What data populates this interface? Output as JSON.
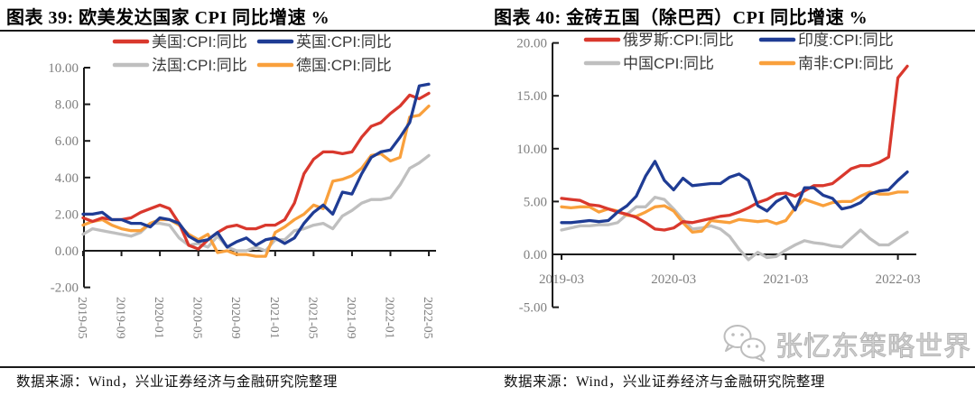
{
  "watermark": {
    "text": "张忆东策略世界",
    "icon": "wechat-chat-bubbles"
  },
  "chart_data": [
    {
      "id": "fig39",
      "type": "line",
      "title": "图表 39: 欧美发达国家 CPI 同比增速 %",
      "source": "数据来源：Wind，兴业证券经济与金融研究院整理",
      "unit": "%",
      "ylim": [
        -2,
        10
      ],
      "yticks": [
        10,
        8,
        6,
        4,
        2,
        0,
        -2
      ],
      "ytick_labels": [
        "10.00",
        "8.00",
        "6.00",
        "4.00",
        "2.00",
        "0.00",
        "-2.00"
      ],
      "x_tick_labels": [
        "2019-05",
        "2019-09",
        "2020-01",
        "2020-05",
        "2020-09",
        "2021-01",
        "2021-05",
        "2021-09",
        "2022-01",
        "2022-05"
      ],
      "x_label_rotation": 90,
      "grid": false,
      "legend_position": "top-two-rows",
      "months": [
        "2019-05",
        "2019-06",
        "2019-07",
        "2019-08",
        "2019-09",
        "2019-10",
        "2019-11",
        "2019-12",
        "2020-01",
        "2020-02",
        "2020-03",
        "2020-04",
        "2020-05",
        "2020-06",
        "2020-07",
        "2020-08",
        "2020-09",
        "2020-10",
        "2020-11",
        "2020-12",
        "2021-01",
        "2021-02",
        "2021-03",
        "2021-04",
        "2021-05",
        "2021-06",
        "2021-07",
        "2021-08",
        "2021-09",
        "2021-10",
        "2021-11",
        "2021-12",
        "2022-01",
        "2022-02",
        "2022-03",
        "2022-04",
        "2022-05"
      ],
      "draw_order": [
        2,
        3,
        0,
        1
      ],
      "series": [
        {
          "name": "美国:CPI:同比",
          "color": "#d9382d",
          "values": [
            1.8,
            1.6,
            1.8,
            1.7,
            1.7,
            1.8,
            2.1,
            2.3,
            2.5,
            2.3,
            1.5,
            0.3,
            0.1,
            0.6,
            1.0,
            1.3,
            1.4,
            1.2,
            1.2,
            1.4,
            1.4,
            1.7,
            2.6,
            4.2,
            5.0,
            5.4,
            5.4,
            5.3,
            5.4,
            6.2,
            6.8,
            7.0,
            7.5,
            7.9,
            8.5,
            8.3,
            8.6
          ]
        },
        {
          "name": "英国:CPI:同比",
          "color": "#1f3c94",
          "values": [
            2.0,
            2.0,
            2.1,
            1.7,
            1.7,
            1.5,
            1.5,
            1.3,
            1.8,
            1.7,
            1.5,
            0.8,
            0.5,
            0.6,
            1.0,
            0.2,
            0.5,
            0.7,
            0.3,
            0.6,
            0.7,
            0.4,
            0.7,
            1.5,
            2.1,
            2.5,
            2.0,
            3.2,
            3.1,
            4.2,
            5.1,
            5.4,
            5.5,
            6.2,
            7.0,
            9.0,
            9.1
          ]
        },
        {
          "name": "法国:CPI:同比",
          "color": "#bfbfbf",
          "values": [
            0.9,
            1.2,
            1.1,
            1.0,
            0.9,
            0.8,
            1.0,
            1.5,
            1.5,
            1.4,
            0.7,
            0.3,
            0.4,
            0.2,
            0.8,
            0.2,
            0.0,
            0.0,
            0.2,
            0.0,
            0.6,
            0.6,
            1.1,
            1.2,
            1.4,
            1.5,
            1.2,
            1.9,
            2.2,
            2.6,
            2.8,
            2.8,
            2.9,
            3.6,
            4.5,
            4.8,
            5.2
          ]
        },
        {
          "name": "德国:CPI:同比",
          "color": "#f9a03c",
          "values": [
            1.4,
            1.6,
            1.7,
            1.4,
            1.2,
            1.1,
            1.1,
            1.5,
            1.7,
            1.7,
            1.4,
            0.9,
            0.6,
            0.9,
            -0.1,
            0.0,
            -0.2,
            -0.2,
            -0.3,
            -0.3,
            1.0,
            1.3,
            1.7,
            2.0,
            2.5,
            2.3,
            3.8,
            3.9,
            4.1,
            4.5,
            5.2,
            5.3,
            4.9,
            5.1,
            7.3,
            7.4,
            7.9
          ]
        }
      ]
    },
    {
      "id": "fig40",
      "type": "line",
      "title": "图表 40: 金砖五国（除巴西）CPI 同比增速 %",
      "source": "数据来源：Wind，兴业证券经济与金融研究院整理",
      "unit": "%",
      "ylim": [
        -5,
        20
      ],
      "yticks": [
        20,
        15,
        10,
        5,
        0,
        -5
      ],
      "ytick_labels": [
        "20.00",
        "15.00",
        "10.00",
        "5.00",
        "0.00",
        "-5.00"
      ],
      "x_tick_labels": [
        "2019-03",
        "2020-03",
        "2021-03",
        "2022-03"
      ],
      "x_label_rotation": 0,
      "grid": false,
      "legend_position": "top-two-rows",
      "months": [
        "2019-03",
        "2019-04",
        "2019-05",
        "2019-06",
        "2019-07",
        "2019-08",
        "2019-09",
        "2019-10",
        "2019-11",
        "2019-12",
        "2020-01",
        "2020-02",
        "2020-03",
        "2020-04",
        "2020-05",
        "2020-06",
        "2020-07",
        "2020-08",
        "2020-09",
        "2020-10",
        "2020-11",
        "2020-12",
        "2021-01",
        "2021-02",
        "2021-03",
        "2021-04",
        "2021-05",
        "2021-06",
        "2021-07",
        "2021-08",
        "2021-09",
        "2021-10",
        "2021-11",
        "2021-12",
        "2022-01",
        "2022-02",
        "2022-03",
        "2022-04"
      ],
      "draw_order": [
        2,
        3,
        0,
        1
      ],
      "series": [
        {
          "name": "俄罗斯:CPI:同比",
          "color": "#d9382d",
          "values": [
            5.3,
            5.2,
            5.1,
            4.7,
            4.6,
            4.3,
            4.0,
            3.8,
            3.5,
            3.0,
            2.4,
            2.3,
            2.5,
            3.1,
            3.0,
            3.2,
            3.4,
            3.6,
            3.7,
            4.0,
            4.4,
            4.9,
            5.2,
            5.7,
            5.8,
            5.5,
            6.0,
            6.5,
            6.5,
            6.7,
            7.4,
            8.1,
            8.4,
            8.4,
            8.7,
            9.2,
            16.7,
            17.8
          ]
        },
        {
          "name": "印度:CPI:同比",
          "color": "#1f3c94",
          "values": [
            3.0,
            3.0,
            3.1,
            3.2,
            3.1,
            3.2,
            4.0,
            4.6,
            5.5,
            7.4,
            8.8,
            7.0,
            6.1,
            7.2,
            6.5,
            6.6,
            6.7,
            6.7,
            7.3,
            7.6,
            7.0,
            4.6,
            4.1,
            5.0,
            5.5,
            4.2,
            6.3,
            6.3,
            5.6,
            5.3,
            4.3,
            4.5,
            4.9,
            5.7,
            6.0,
            6.1,
            7.0,
            7.8
          ]
        },
        {
          "name": "中国CPI:同比",
          "color": "#bfbfbf",
          "values": [
            2.3,
            2.5,
            2.7,
            2.7,
            2.8,
            2.8,
            3.0,
            3.8,
            4.5,
            4.5,
            5.4,
            5.2,
            4.3,
            3.3,
            2.4,
            2.5,
            2.7,
            2.4,
            1.7,
            0.5,
            -0.5,
            0.2,
            -0.3,
            -0.2,
            0.4,
            0.9,
            1.3,
            1.1,
            1.0,
            0.8,
            0.7,
            1.5,
            2.3,
            1.5,
            0.9,
            0.9,
            1.5,
            2.1
          ]
        },
        {
          "name": "南非:CPI:同比",
          "color": "#f9a03c",
          "values": [
            4.5,
            4.4,
            4.5,
            4.5,
            4.0,
            4.3,
            4.1,
            3.7,
            3.6,
            4.0,
            4.5,
            4.6,
            4.1,
            3.0,
            2.1,
            2.2,
            3.2,
            3.1,
            3.0,
            3.3,
            3.2,
            3.1,
            3.2,
            2.9,
            3.2,
            4.4,
            5.2,
            4.9,
            4.6,
            4.9,
            5.0,
            5.0,
            5.5,
            5.9,
            5.7,
            5.7,
            5.9,
            5.9
          ]
        }
      ]
    }
  ]
}
